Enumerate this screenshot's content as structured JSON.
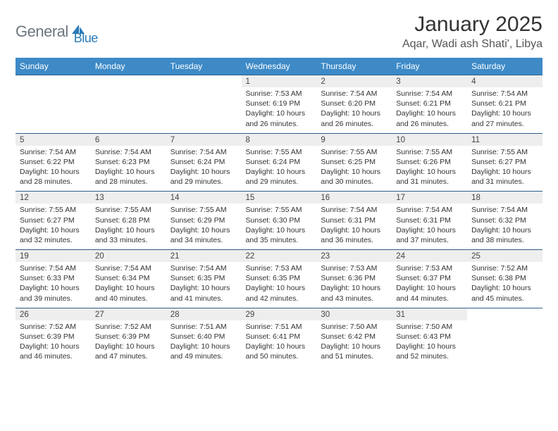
{
  "logo": {
    "part1": "General",
    "part2": "Blue"
  },
  "title": "January 2025",
  "location": "Aqar, Wadi ash Shati', Libya",
  "weekdays": [
    "Sunday",
    "Monday",
    "Tuesday",
    "Wednesday",
    "Thursday",
    "Friday",
    "Saturday"
  ],
  "colors": {
    "header_bg": "#3d8ac7",
    "header_fg": "#ffffff",
    "daynum_bg": "#eeeeee",
    "border_top": "#2e5f8a",
    "logo_gray": "#6b7680",
    "logo_blue": "#2a7ab8"
  },
  "weeks": [
    [
      {
        "n": "",
        "lines": []
      },
      {
        "n": "",
        "lines": []
      },
      {
        "n": "",
        "lines": []
      },
      {
        "n": "1",
        "lines": [
          "Sunrise: 7:53 AM",
          "Sunset: 6:19 PM",
          "Daylight: 10 hours and 26 minutes."
        ]
      },
      {
        "n": "2",
        "lines": [
          "Sunrise: 7:54 AM",
          "Sunset: 6:20 PM",
          "Daylight: 10 hours and 26 minutes."
        ]
      },
      {
        "n": "3",
        "lines": [
          "Sunrise: 7:54 AM",
          "Sunset: 6:21 PM",
          "Daylight: 10 hours and 26 minutes."
        ]
      },
      {
        "n": "4",
        "lines": [
          "Sunrise: 7:54 AM",
          "Sunset: 6:21 PM",
          "Daylight: 10 hours and 27 minutes."
        ]
      }
    ],
    [
      {
        "n": "5",
        "lines": [
          "Sunrise: 7:54 AM",
          "Sunset: 6:22 PM",
          "Daylight: 10 hours and 28 minutes."
        ]
      },
      {
        "n": "6",
        "lines": [
          "Sunrise: 7:54 AM",
          "Sunset: 6:23 PM",
          "Daylight: 10 hours and 28 minutes."
        ]
      },
      {
        "n": "7",
        "lines": [
          "Sunrise: 7:54 AM",
          "Sunset: 6:24 PM",
          "Daylight: 10 hours and 29 minutes."
        ]
      },
      {
        "n": "8",
        "lines": [
          "Sunrise: 7:55 AM",
          "Sunset: 6:24 PM",
          "Daylight: 10 hours and 29 minutes."
        ]
      },
      {
        "n": "9",
        "lines": [
          "Sunrise: 7:55 AM",
          "Sunset: 6:25 PM",
          "Daylight: 10 hours and 30 minutes."
        ]
      },
      {
        "n": "10",
        "lines": [
          "Sunrise: 7:55 AM",
          "Sunset: 6:26 PM",
          "Daylight: 10 hours and 31 minutes."
        ]
      },
      {
        "n": "11",
        "lines": [
          "Sunrise: 7:55 AM",
          "Sunset: 6:27 PM",
          "Daylight: 10 hours and 31 minutes."
        ]
      }
    ],
    [
      {
        "n": "12",
        "lines": [
          "Sunrise: 7:55 AM",
          "Sunset: 6:27 PM",
          "Daylight: 10 hours and 32 minutes."
        ]
      },
      {
        "n": "13",
        "lines": [
          "Sunrise: 7:55 AM",
          "Sunset: 6:28 PM",
          "Daylight: 10 hours and 33 minutes."
        ]
      },
      {
        "n": "14",
        "lines": [
          "Sunrise: 7:55 AM",
          "Sunset: 6:29 PM",
          "Daylight: 10 hours and 34 minutes."
        ]
      },
      {
        "n": "15",
        "lines": [
          "Sunrise: 7:55 AM",
          "Sunset: 6:30 PM",
          "Daylight: 10 hours and 35 minutes."
        ]
      },
      {
        "n": "16",
        "lines": [
          "Sunrise: 7:54 AM",
          "Sunset: 6:31 PM",
          "Daylight: 10 hours and 36 minutes."
        ]
      },
      {
        "n": "17",
        "lines": [
          "Sunrise: 7:54 AM",
          "Sunset: 6:31 PM",
          "Daylight: 10 hours and 37 minutes."
        ]
      },
      {
        "n": "18",
        "lines": [
          "Sunrise: 7:54 AM",
          "Sunset: 6:32 PM",
          "Daylight: 10 hours and 38 minutes."
        ]
      }
    ],
    [
      {
        "n": "19",
        "lines": [
          "Sunrise: 7:54 AM",
          "Sunset: 6:33 PM",
          "Daylight: 10 hours and 39 minutes."
        ]
      },
      {
        "n": "20",
        "lines": [
          "Sunrise: 7:54 AM",
          "Sunset: 6:34 PM",
          "Daylight: 10 hours and 40 minutes."
        ]
      },
      {
        "n": "21",
        "lines": [
          "Sunrise: 7:54 AM",
          "Sunset: 6:35 PM",
          "Daylight: 10 hours and 41 minutes."
        ]
      },
      {
        "n": "22",
        "lines": [
          "Sunrise: 7:53 AM",
          "Sunset: 6:35 PM",
          "Daylight: 10 hours and 42 minutes."
        ]
      },
      {
        "n": "23",
        "lines": [
          "Sunrise: 7:53 AM",
          "Sunset: 6:36 PM",
          "Daylight: 10 hours and 43 minutes."
        ]
      },
      {
        "n": "24",
        "lines": [
          "Sunrise: 7:53 AM",
          "Sunset: 6:37 PM",
          "Daylight: 10 hours and 44 minutes."
        ]
      },
      {
        "n": "25",
        "lines": [
          "Sunrise: 7:52 AM",
          "Sunset: 6:38 PM",
          "Daylight: 10 hours and 45 minutes."
        ]
      }
    ],
    [
      {
        "n": "26",
        "lines": [
          "Sunrise: 7:52 AM",
          "Sunset: 6:39 PM",
          "Daylight: 10 hours and 46 minutes."
        ]
      },
      {
        "n": "27",
        "lines": [
          "Sunrise: 7:52 AM",
          "Sunset: 6:39 PM",
          "Daylight: 10 hours and 47 minutes."
        ]
      },
      {
        "n": "28",
        "lines": [
          "Sunrise: 7:51 AM",
          "Sunset: 6:40 PM",
          "Daylight: 10 hours and 49 minutes."
        ]
      },
      {
        "n": "29",
        "lines": [
          "Sunrise: 7:51 AM",
          "Sunset: 6:41 PM",
          "Daylight: 10 hours and 50 minutes."
        ]
      },
      {
        "n": "30",
        "lines": [
          "Sunrise: 7:50 AM",
          "Sunset: 6:42 PM",
          "Daylight: 10 hours and 51 minutes."
        ]
      },
      {
        "n": "31",
        "lines": [
          "Sunrise: 7:50 AM",
          "Sunset: 6:43 PM",
          "Daylight: 10 hours and 52 minutes."
        ]
      },
      {
        "n": "",
        "lines": []
      }
    ]
  ]
}
